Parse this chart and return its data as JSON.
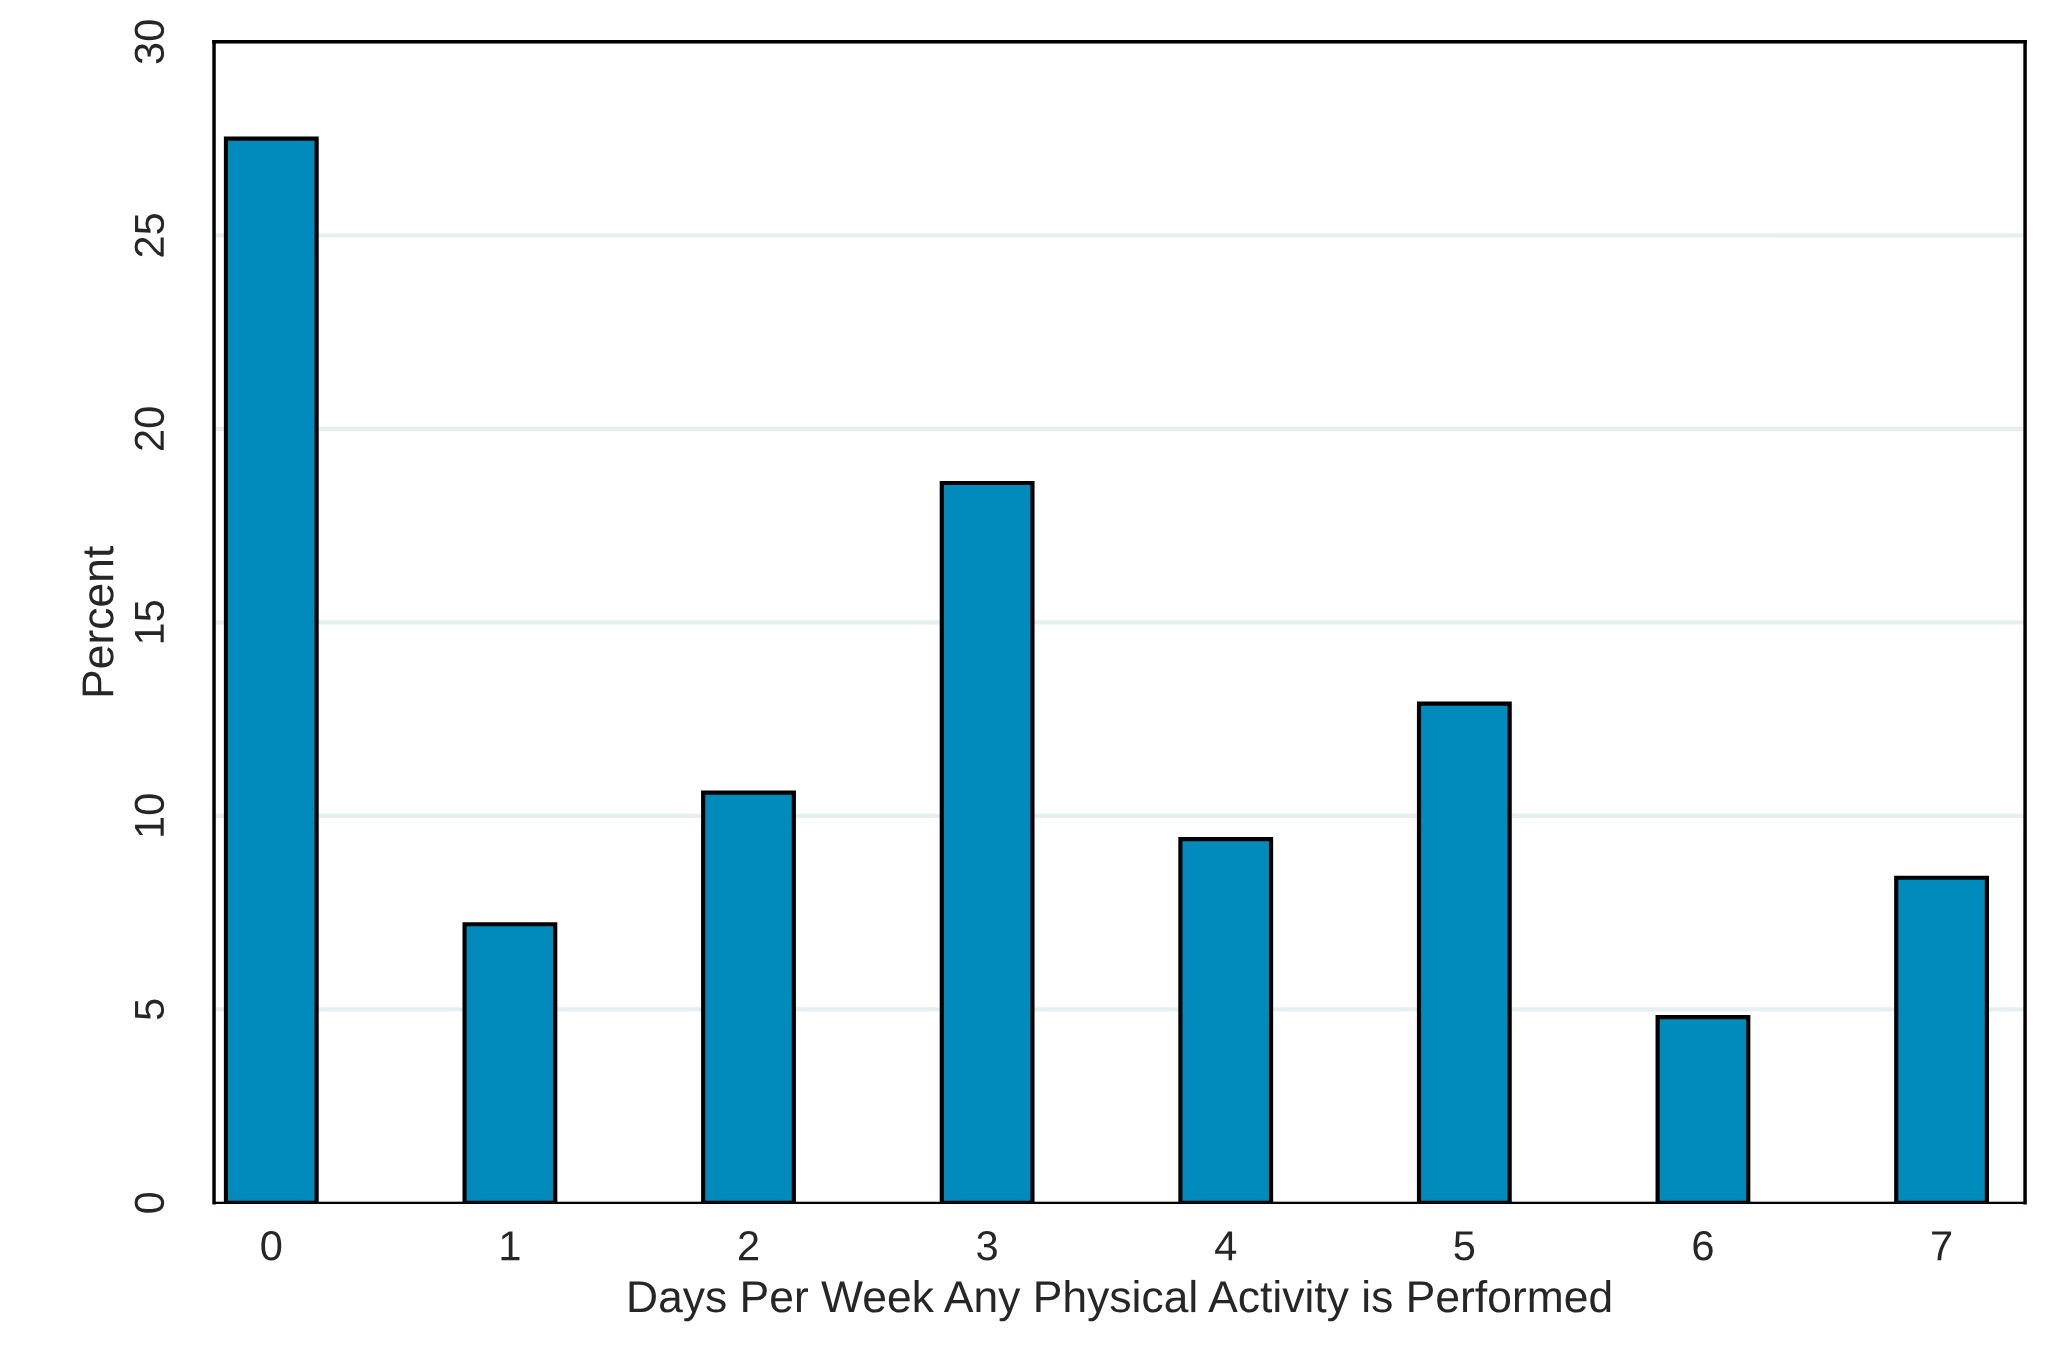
{
  "chart_data": {
    "type": "bar",
    "xlabel": "Days Per Week Any Physical Activity is Performed",
    "ylabel": "Percent",
    "x": [
      0,
      1,
      2,
      3,
      4,
      5,
      6,
      7
    ],
    "values": [
      27.5,
      7.2,
      10.6,
      18.6,
      9.4,
      12.9,
      4.8,
      8.4
    ],
    "color": "#008bbc",
    "xlim": [
      -0.24,
      7.35
    ],
    "xticks": [
      0,
      1,
      2,
      3,
      4,
      5,
      6,
      7
    ],
    "ylim": [
      0,
      30
    ],
    "yticks": [
      0,
      5,
      10,
      15,
      20,
      25,
      30
    ],
    "grid": "y"
  }
}
